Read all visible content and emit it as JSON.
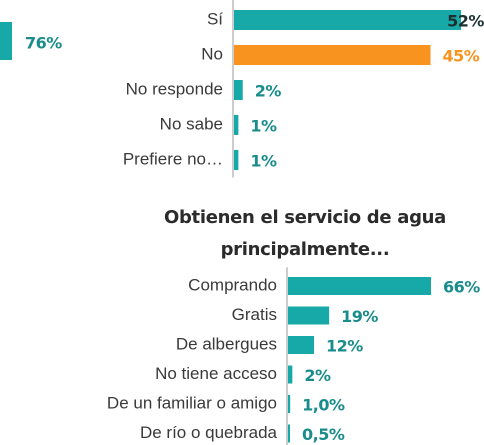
{
  "chart_data": [
    {
      "type": "fragment",
      "categories": [
        null
      ],
      "values": [
        76
      ],
      "value_labels": [
        "76%"
      ],
      "color": "#17a9a7",
      "label_color": "#1a8c8c",
      "xlim": [
        0,
        100
      ]
    },
    {
      "type": "hbar",
      "categories": [
        "Sí",
        "No",
        "No responde",
        "No sabe",
        "Prefiere no…"
      ],
      "values": [
        52,
        45,
        2,
        1,
        1
      ],
      "value_labels": [
        "52%",
        "45%",
        "2%",
        "1%",
        "1%"
      ],
      "colors": [
        "#17a9a7",
        "#f7931e",
        "#17a9a7",
        "#17a9a7",
        "#17a9a7"
      ],
      "label_colors": [
        "#1d2f2f",
        "#f7931e",
        "#1a8c8c",
        "#1a8c8c",
        "#1a8c8c"
      ],
      "xlim": [
        0,
        60
      ]
    },
    {
      "type": "hbar",
      "title": [
        "Obtienen el servicio de agua",
        "principalmente..."
      ],
      "categories": [
        "Comprando",
        "Gratis",
        "De albergues",
        "No tiene acceso",
        "De un familiar o amigo",
        "De río o quebrada"
      ],
      "values": [
        66,
        19,
        12,
        2,
        1.0,
        0.5
      ],
      "value_labels": [
        "66%",
        "19%",
        "12%",
        "2%",
        "1,0%",
        "0,5%"
      ],
      "colors": [
        "#17a9a7",
        "#17a9a7",
        "#17a9a7",
        "#17a9a7",
        "#17a9a7",
        "#17a9a7"
      ],
      "label_colors": [
        "#1a8c8c",
        "#1a8c8c",
        "#1a8c8c",
        "#1a8c8c",
        "#1a8c8c",
        "#1a8c8c"
      ],
      "xlim": [
        0,
        90
      ]
    }
  ]
}
